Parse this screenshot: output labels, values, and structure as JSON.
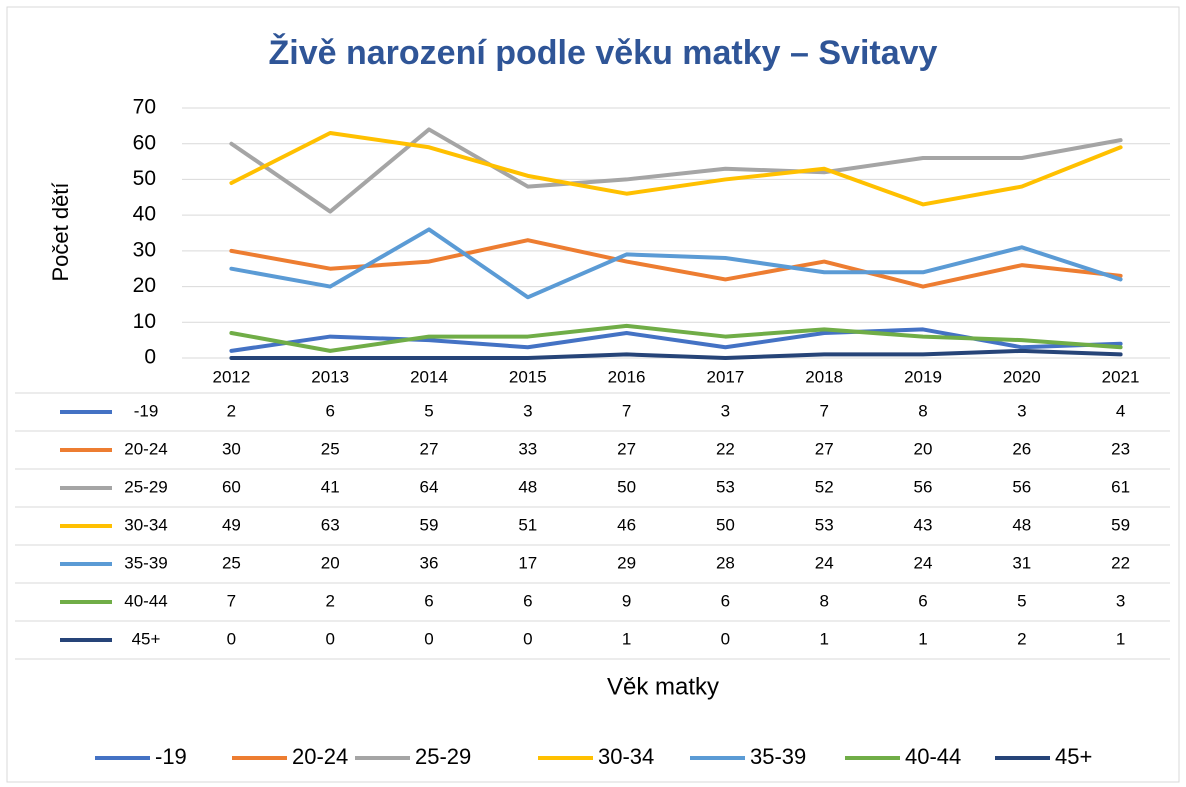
{
  "chart_data": {
    "type": "line",
    "title": "Živě narození podle věku matky – Svitavy",
    "x_label": "Věk matky",
    "y_label": "Počet dětí",
    "categories": [
      "2012",
      "2013",
      "2014",
      "2015",
      "2016",
      "2017",
      "2018",
      "2019",
      "2020",
      "2021"
    ],
    "series": [
      {
        "name": "-19",
        "color": "#4472c4",
        "values": [
          2,
          6,
          5,
          3,
          7,
          3,
          7,
          8,
          3,
          4
        ]
      },
      {
        "name": "20-24",
        "color": "#ed7d31",
        "values": [
          30,
          25,
          27,
          33,
          27,
          22,
          27,
          20,
          26,
          23
        ]
      },
      {
        "name": "25-29",
        "color": "#a5a5a5",
        "values": [
          60,
          41,
          64,
          48,
          50,
          53,
          52,
          56,
          56,
          61
        ]
      },
      {
        "name": "30-34",
        "color": "#ffc000",
        "values": [
          49,
          63,
          59,
          51,
          46,
          50,
          53,
          43,
          48,
          59
        ]
      },
      {
        "name": "35-39",
        "color": "#5b9bd5",
        "values": [
          25,
          20,
          36,
          17,
          29,
          28,
          24,
          24,
          31,
          22
        ]
      },
      {
        "name": "40-44",
        "color": "#70ad47",
        "values": [
          7,
          2,
          6,
          6,
          9,
          6,
          8,
          6,
          5,
          3
        ]
      },
      {
        "name": "45+",
        "color": "#264478",
        "values": [
          0,
          0,
          0,
          0,
          1,
          0,
          1,
          1,
          2,
          1
        ]
      }
    ],
    "ylim": [
      0,
      70
    ],
    "yticks": [
      0,
      10,
      20,
      30,
      40,
      50,
      60,
      70
    ],
    "grid": true,
    "data_table": true,
    "legend": "bottom"
  }
}
